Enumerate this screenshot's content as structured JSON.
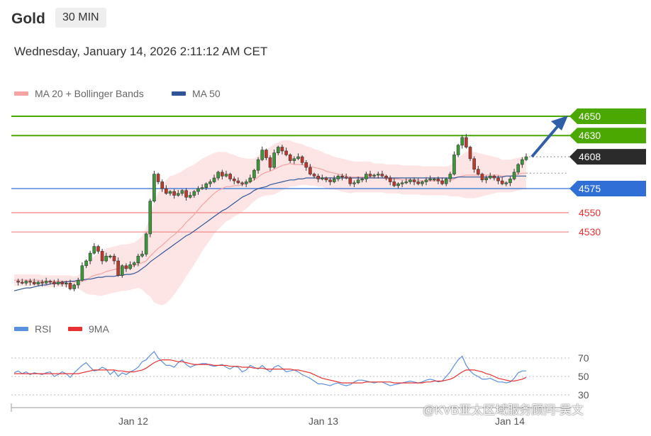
{
  "header": {
    "instrument": "Gold",
    "timeframe": "30 MIN",
    "datetime": "Wednesday, January 14, 2026 2:11:12 AM CET"
  },
  "legend": {
    "ma20_label": "MA 20 + Bollinger Bands",
    "ma50_label": "MA 50",
    "rsi_label": "RSI",
    "ma9_label": "9MA"
  },
  "colors": {
    "ma20": "#f5a3a3",
    "ma50": "#2f5597",
    "band_fill": "#fde0e0",
    "resistance": "#4aa800",
    "support": "#2f6fd6",
    "support_red": "#f08080",
    "current": "#2b2b2b",
    "arrow": "#2f5fa8",
    "rsi": "#5b8fe0",
    "rsi_ma": "#e83030"
  },
  "watermark": "@KVB亚太区域服务顾问-吴文",
  "chart_data": [
    {
      "type": "candlestick",
      "title": "",
      "xlabel": "",
      "ylabel": "",
      "ylim": [
        4431,
        4658
      ],
      "x_ticks": [
        "Jan 12",
        "Jan 13",
        "Jan 14"
      ],
      "levels": [
        {
          "label": "4650",
          "value": 4650,
          "kind": "resistance"
        },
        {
          "label": "4630",
          "value": 4630,
          "kind": "resistance"
        },
        {
          "label": "4608",
          "value": 4608,
          "kind": "current"
        },
        {
          "label": "4575",
          "value": 4575,
          "kind": "support"
        },
        {
          "label": "4550",
          "value": 4550,
          "kind": "support-light"
        },
        {
          "label": "4530",
          "value": 4530,
          "kind": "support-light"
        }
      ],
      "close_series": [
        4479,
        4478,
        4477,
        4479,
        4478,
        4476,
        4478,
        4477,
        4479,
        4478,
        4476,
        4478,
        4476,
        4477,
        4471,
        4475,
        4480,
        4495,
        4500,
        4508,
        4515,
        4510,
        4500,
        4505,
        4505,
        4500,
        4485,
        4495,
        4492,
        4496,
        4498,
        4505,
        4507,
        4528,
        4562,
        4590,
        4582,
        4575,
        4570,
        4572,
        4568,
        4570,
        4573,
        4566,
        4568,
        4572,
        4575,
        4576,
        4580,
        4582,
        4586,
        4592,
        4588,
        4590,
        4585,
        4583,
        4581,
        4580,
        4582,
        4586,
        4594,
        4605,
        4615,
        4607,
        4597,
        4612,
        4618,
        4614,
        4610,
        4604,
        4606,
        4608,
        4602,
        4597,
        4590,
        4588,
        4585,
        4586,
        4584,
        4582,
        4585,
        4588,
        4587,
        4586,
        4580,
        4581,
        4584,
        4585,
        4590,
        4588,
        4589,
        4590,
        4588,
        4586,
        4582,
        4578,
        4580,
        4581,
        4582,
        4584,
        4582,
        4580,
        4582,
        4584,
        4585,
        4585,
        4583,
        4580,
        4585,
        4590,
        4610,
        4620,
        4628,
        4618,
        4606,
        4595,
        4590,
        4584,
        4586,
        4588,
        4586,
        4583,
        4580,
        4581,
        4585,
        4592,
        4600,
        4605,
        4608
      ],
      "ma20_series": [
        4480,
        4480,
        4480,
        4480,
        4480,
        4480,
        4480,
        4479,
        4479,
        4479,
        4479,
        4479,
        4479,
        4479,
        4479,
        4478,
        4478,
        4479,
        4480,
        4483,
        4485,
        4486,
        4487,
        4489,
        4490,
        4491,
        4492,
        4493,
        4493,
        4494,
        4495,
        4497,
        4498,
        4500,
        4505,
        4509,
        4513,
        4516,
        4520,
        4524,
        4527,
        4531,
        4535,
        4540,
        4544,
        4548,
        4553,
        4558,
        4562,
        4566,
        4570,
        4573,
        4575,
        4577,
        4577,
        4578,
        4578,
        4579,
        4580,
        4582,
        4584,
        4587,
        4590,
        4592,
        4593,
        4595,
        4597,
        4599,
        4600,
        4601,
        4600,
        4600,
        4600,
        4599,
        4598,
        4597,
        4596,
        4595,
        4593,
        4592,
        4591,
        4590,
        4589,
        4588,
        4587,
        4587,
        4587,
        4587,
        4587,
        4587,
        4586,
        4586,
        4586,
        4585,
        4585,
        4585,
        4585,
        4584,
        4584,
        4584,
        4584,
        4584,
        4583,
        4583,
        4583,
        4583,
        4583,
        4583,
        4583,
        4583,
        4585,
        4587,
        4588,
        4589,
        4589,
        4589,
        4589,
        4589,
        4589,
        4589,
        4589,
        4589,
        4588,
        4588,
        4588,
        4589,
        4590,
        4591,
        4591
      ],
      "ma50_series": [
        4469,
        4470,
        4471,
        4472,
        4472,
        4473,
        4474,
        4475,
        4475,
        4476,
        4477,
        4477,
        4478,
        4478,
        4479,
        4479,
        4480,
        4480,
        4481,
        4481,
        4482,
        4483,
        4483,
        4484,
        4484,
        4484,
        4485,
        4485,
        4486,
        4486,
        4487,
        4489,
        4492,
        4495,
        4499,
        4502,
        4505,
        4508,
        4511,
        4514,
        4517,
        4520,
        4523,
        4526,
        4528,
        4531,
        4534,
        4537,
        4540,
        4543,
        4546,
        4549,
        4552,
        4554,
        4557,
        4560,
        4563,
        4566,
        4568,
        4570,
        4573,
        4575,
        4576,
        4577,
        4579,
        4580,
        4581,
        4582,
        4583,
        4584,
        4584,
        4585,
        4585,
        4586,
        4586,
        4586,
        4586,
        4586,
        4586,
        4586,
        4586,
        4586,
        4586,
        4586,
        4586,
        4586,
        4586,
        4586,
        4586,
        4586,
        4586,
        4586,
        4586,
        4586,
        4586,
        4586,
        4586,
        4586,
        4586,
        4586,
        4586,
        4586,
        4586,
        4586,
        4586,
        4586,
        4586,
        4586,
        4586,
        4586,
        4586,
        4587,
        4587,
        4587,
        4587,
        4587,
        4587,
        4587,
        4587,
        4587,
        4587,
        4587,
        4587,
        4588,
        4588,
        4588,
        4588,
        4588,
        4588
      ],
      "bollinger_width": [
        6,
        6,
        6,
        6,
        6,
        6,
        6,
        6,
        6,
        6,
        6,
        6,
        6,
        6,
        6,
        6,
        7,
        10,
        14,
        18,
        20,
        22,
        23,
        24,
        24,
        24,
        24,
        24,
        24,
        24,
        24,
        25,
        28,
        34,
        42,
        52,
        58,
        62,
        64,
        64,
        62,
        60,
        58,
        56,
        54,
        52,
        50,
        48,
        46,
        44,
        42,
        40,
        38,
        36,
        34,
        32,
        30,
        28,
        26,
        24,
        22,
        22,
        23,
        24,
        25,
        26,
        26,
        26,
        25,
        24,
        23,
        22,
        21,
        20,
        20,
        19,
        19,
        18,
        18,
        18,
        17,
        17,
        17,
        17,
        17,
        16,
        16,
        16,
        16,
        16,
        15,
        15,
        15,
        15,
        15,
        15,
        15,
        15,
        15,
        15,
        15,
        15,
        15,
        15,
        15,
        15,
        15,
        15,
        15,
        16,
        18,
        20,
        22,
        24,
        24,
        24,
        23,
        22,
        21,
        20,
        19,
        18,
        17,
        17,
        17,
        17,
        17,
        17,
        17
      ]
    },
    {
      "type": "line",
      "title": "",
      "ylim": [
        28,
        80
      ],
      "y_ticks": [
        30,
        50,
        70
      ],
      "series": [
        {
          "name": "RSI",
          "values": [
            54,
            56,
            53,
            55,
            52,
            54,
            53,
            52,
            54,
            55,
            50,
            52,
            55,
            53,
            49,
            54,
            58,
            62,
            65,
            60,
            56,
            57,
            60,
            58,
            52,
            56,
            50,
            54,
            52,
            55,
            57,
            60,
            66,
            68,
            73,
            77,
            70,
            66,
            62,
            62,
            60,
            65,
            68,
            63,
            60,
            62,
            63,
            64,
            64,
            62,
            61,
            62,
            63,
            60,
            58,
            61,
            60,
            55,
            57,
            62,
            60,
            58,
            62,
            58,
            55,
            60,
            62,
            59,
            55,
            56,
            57,
            55,
            52,
            50,
            48,
            45,
            42,
            42,
            41,
            40,
            42,
            43,
            41,
            40,
            41,
            44,
            46,
            46,
            45,
            44,
            43,
            44,
            44,
            42,
            40,
            41,
            42,
            43,
            44,
            45,
            44,
            43,
            44,
            46,
            47,
            46,
            44,
            45,
            50,
            55,
            62,
            68,
            72,
            62,
            56,
            52,
            50,
            47,
            47,
            48,
            46,
            44,
            44,
            43,
            44,
            48,
            54,
            56,
            56
          ]
        },
        {
          "name": "9MA",
          "values": [
            53,
            53,
            53,
            53,
            53,
            53,
            53,
            53,
            53,
            53,
            53,
            53,
            53,
            53,
            53,
            53,
            53,
            54,
            55,
            56,
            57,
            57,
            57,
            57,
            57,
            57,
            56,
            56,
            55,
            55,
            55,
            56,
            57,
            59,
            62,
            65,
            67,
            68,
            68,
            68,
            67,
            66,
            66,
            65,
            64,
            63,
            63,
            63,
            63,
            63,
            62,
            62,
            62,
            62,
            61,
            61,
            61,
            60,
            60,
            60,
            59,
            59,
            59,
            58,
            58,
            58,
            58,
            58,
            58,
            58,
            57,
            57,
            56,
            55,
            54,
            52,
            50,
            48,
            47,
            46,
            45,
            44,
            43,
            43,
            43,
            43,
            43,
            43,
            44,
            44,
            44,
            44,
            44,
            44,
            44,
            43,
            43,
            43,
            43,
            43,
            43,
            43,
            43,
            44,
            44,
            45,
            45,
            45,
            46,
            47,
            49,
            52,
            55,
            57,
            57,
            57,
            56,
            55,
            53,
            52,
            50,
            48,
            47,
            46,
            45,
            45,
            46,
            47,
            49
          ]
        }
      ]
    }
  ]
}
